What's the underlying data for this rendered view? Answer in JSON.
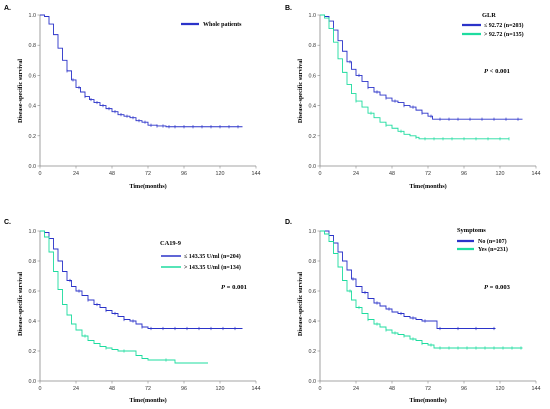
{
  "chart_data": [
    {
      "type": "line",
      "panel_label": "A.",
      "xlabel": "Time(months)",
      "ylabel": "Disease-specific survival",
      "xlim": [
        0,
        144
      ],
      "ylim": [
        0,
        1.0
      ],
      "x_ticks": [
        0,
        24,
        48,
        72,
        96,
        120,
        144
      ],
      "y_ticks": [
        0.0,
        0.2,
        0.4,
        0.6,
        0.8,
        1.0
      ],
      "y_tick_labels": [
        "0.0",
        "0.2",
        "0.4",
        "0.6",
        "0.8",
        "1.0"
      ],
      "legend_title": "",
      "legend_placement": "top-right",
      "p_value_prefix": "",
      "p_value": "",
      "series": [
        {
          "name": "Whole patients",
          "color": "#2b33c9",
          "x": [
            0,
            3,
            6,
            9,
            12,
            15,
            18,
            21,
            24,
            27,
            30,
            33,
            36,
            40,
            44,
            48,
            52,
            56,
            60,
            64,
            68,
            72,
            78,
            84,
            96,
            108,
            120,
            135
          ],
          "y": [
            1.0,
            0.99,
            0.94,
            0.87,
            0.78,
            0.7,
            0.63,
            0.57,
            0.52,
            0.49,
            0.46,
            0.44,
            0.42,
            0.4,
            0.38,
            0.36,
            0.34,
            0.33,
            0.32,
            0.3,
            0.29,
            0.27,
            0.265,
            0.26,
            0.26,
            0.26,
            0.26,
            0.26
          ],
          "censor_x": [
            18,
            22,
            26,
            30,
            34,
            38,
            42,
            46,
            50,
            54,
            58,
            62,
            66,
            70,
            74,
            78,
            82,
            86,
            90,
            96,
            102,
            108,
            114,
            120,
            126,
            132
          ]
        }
      ]
    },
    {
      "type": "line",
      "panel_label": "B.",
      "xlabel": "Time(months)",
      "ylabel": "Disease-specific survival",
      "xlim": [
        0,
        144
      ],
      "ylim": [
        0,
        1.0
      ],
      "x_ticks": [
        0,
        24,
        48,
        72,
        96,
        120,
        144
      ],
      "y_ticks": [
        0.0,
        0.2,
        0.4,
        0.6,
        0.8,
        1.0
      ],
      "y_tick_labels": [
        "0.0",
        "0.2",
        "0.4",
        "0.6",
        "0.8",
        "1.0"
      ],
      "legend_title": "GLR",
      "legend_placement": "top-right",
      "p_value_prefix": "P",
      "p_value": " < 0.001",
      "series": [
        {
          "name": "≤ 92.72 (n=203)",
          "color": "#2b33c9",
          "x": [
            0,
            3,
            6,
            9,
            12,
            15,
            18,
            21,
            24,
            28,
            32,
            36,
            40,
            44,
            48,
            52,
            56,
            60,
            64,
            68,
            72,
            75,
            84,
            96,
            108,
            120,
            135
          ],
          "y": [
            1.0,
            0.99,
            0.96,
            0.9,
            0.83,
            0.76,
            0.69,
            0.64,
            0.6,
            0.56,
            0.52,
            0.49,
            0.47,
            0.45,
            0.43,
            0.42,
            0.4,
            0.39,
            0.37,
            0.35,
            0.33,
            0.31,
            0.31,
            0.31,
            0.31,
            0.31,
            0.31
          ],
          "censor_x": [
            20,
            26,
            32,
            38,
            44,
            50,
            56,
            62,
            68,
            74,
            80,
            86,
            92,
            100,
            108,
            116,
            124,
            132
          ]
        },
        {
          "name": "> 92.72 (n=135)",
          "color": "#1edc9f",
          "x": [
            0,
            3,
            6,
            9,
            12,
            15,
            18,
            21,
            24,
            28,
            32,
            36,
            40,
            44,
            48,
            52,
            56,
            60,
            64,
            66,
            72,
            80,
            96,
            110,
            126
          ],
          "y": [
            1.0,
            0.98,
            0.91,
            0.82,
            0.71,
            0.62,
            0.54,
            0.48,
            0.43,
            0.39,
            0.35,
            0.32,
            0.29,
            0.27,
            0.25,
            0.23,
            0.21,
            0.2,
            0.19,
            0.18,
            0.18,
            0.18,
            0.18,
            0.18,
            0.18
          ],
          "censor_x": [
            24,
            34,
            44,
            54,
            64,
            70,
            76,
            82,
            88,
            96,
            104,
            112,
            120,
            126
          ]
        }
      ]
    },
    {
      "type": "line",
      "panel_label": "C.",
      "xlabel": "Time(months)",
      "ylabel": "Disease-specific survival",
      "xlim": [
        0,
        144
      ],
      "ylim": [
        0,
        1.0
      ],
      "x_ticks": [
        0,
        24,
        48,
        72,
        96,
        120,
        144
      ],
      "y_ticks": [
        0.0,
        0.2,
        0.4,
        0.6,
        0.8,
        1.0
      ],
      "y_tick_labels": [
        "0.0",
        "0.2",
        "0.4",
        "0.6",
        "0.8",
        "1.0"
      ],
      "legend_title": "CA19-9",
      "legend_placement": "top-right",
      "p_value_prefix": "P",
      "p_value": " = 0.001",
      "series": [
        {
          "name": "≤ 143.35 U/ml (n=204)",
          "color": "#2b33c9",
          "x": [
            0,
            3,
            6,
            9,
            12,
            15,
            18,
            21,
            24,
            28,
            32,
            36,
            40,
            44,
            48,
            52,
            56,
            60,
            64,
            68,
            72,
            84,
            96,
            108,
            120,
            135
          ],
          "y": [
            1.0,
            0.99,
            0.95,
            0.88,
            0.8,
            0.73,
            0.67,
            0.63,
            0.6,
            0.57,
            0.54,
            0.51,
            0.49,
            0.47,
            0.45,
            0.43,
            0.41,
            0.4,
            0.38,
            0.36,
            0.35,
            0.35,
            0.35,
            0.35,
            0.35,
            0.35
          ],
          "censor_x": [
            20,
            26,
            32,
            38,
            44,
            50,
            56,
            62,
            68,
            74,
            82,
            90,
            98,
            106,
            114,
            122,
            130
          ]
        },
        {
          "name": "> 143.35 U/ml (n=134)",
          "color": "#1edc9f",
          "x": [
            0,
            3,
            6,
            9,
            12,
            15,
            18,
            21,
            24,
            28,
            32,
            36,
            40,
            44,
            48,
            52,
            56,
            60,
            64,
            68,
            72,
            80,
            90,
            100,
            112
          ],
          "y": [
            1.0,
            0.96,
            0.86,
            0.73,
            0.61,
            0.51,
            0.44,
            0.38,
            0.34,
            0.3,
            0.27,
            0.25,
            0.23,
            0.22,
            0.21,
            0.2,
            0.2,
            0.2,
            0.17,
            0.15,
            0.14,
            0.14,
            0.12,
            0.12,
            0.12
          ],
          "censor_x": [
            30,
            44,
            56,
            84
          ]
        }
      ]
    },
    {
      "type": "line",
      "panel_label": "D.",
      "xlabel": "Time(months)",
      "ylabel": "Disease-specific survival",
      "xlim": [
        0,
        144
      ],
      "ylim": [
        0,
        1.0
      ],
      "x_ticks": [
        0,
        24,
        48,
        72,
        96,
        120,
        144
      ],
      "y_ticks": [
        0.0,
        0.2,
        0.4,
        0.6,
        0.8,
        1.0
      ],
      "y_tick_labels": [
        "0.0",
        "0.2",
        "0.4",
        "0.6",
        "0.8",
        "1.0"
      ],
      "legend_title": "Symptoms",
      "legend_placement": "top-right",
      "p_value_prefix": "P",
      "p_value": " = 0.003",
      "series": [
        {
          "name": "No (n=107)",
          "color": "#2b33c9",
          "x": [
            0,
            3,
            6,
            9,
            12,
            15,
            18,
            21,
            24,
            28,
            32,
            36,
            40,
            44,
            48,
            52,
            56,
            60,
            64,
            68,
            72,
            78,
            84,
            96,
            110,
            117
          ],
          "y": [
            1.0,
            1.0,
            0.97,
            0.92,
            0.86,
            0.8,
            0.74,
            0.68,
            0.63,
            0.59,
            0.55,
            0.52,
            0.5,
            0.48,
            0.46,
            0.45,
            0.43,
            0.42,
            0.41,
            0.4,
            0.4,
            0.35,
            0.35,
            0.35,
            0.35,
            0.35
          ],
          "censor_x": [
            22,
            30,
            38,
            46,
            54,
            62,
            70,
            80,
            92,
            104,
            116
          ]
        },
        {
          "name": "Yes (n=231)",
          "color": "#1edc9f",
          "x": [
            0,
            3,
            6,
            9,
            12,
            15,
            18,
            21,
            24,
            28,
            32,
            36,
            40,
            44,
            48,
            52,
            56,
            60,
            64,
            68,
            72,
            76,
            84,
            96,
            108,
            120,
            135
          ],
          "y": [
            1.0,
            0.98,
            0.93,
            0.85,
            0.76,
            0.67,
            0.6,
            0.54,
            0.49,
            0.45,
            0.41,
            0.38,
            0.36,
            0.34,
            0.32,
            0.31,
            0.3,
            0.28,
            0.27,
            0.25,
            0.24,
            0.22,
            0.22,
            0.22,
            0.22,
            0.22,
            0.22
          ],
          "censor_x": [
            20,
            26,
            32,
            38,
            44,
            50,
            56,
            62,
            68,
            74,
            80,
            86,
            92,
            98,
            104,
            110,
            116,
            122,
            128,
            134
          ]
        }
      ]
    }
  ]
}
